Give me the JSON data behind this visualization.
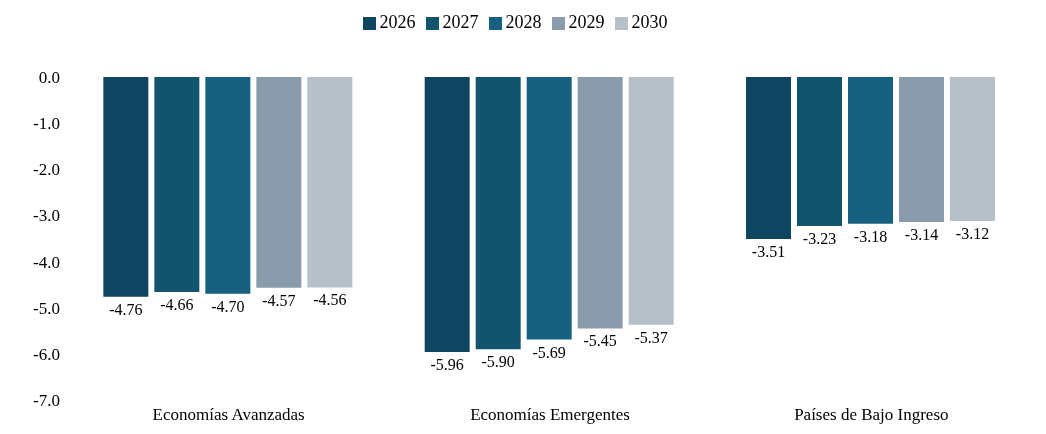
{
  "chart_data": {
    "type": "bar",
    "categories": [
      "Economías Avanzadas",
      "Economías Emergentes",
      "Países de Bajo Ingreso"
    ],
    "series": [
      {
        "name": "2026",
        "color": "#0e4560",
        "values": [
          -4.76,
          -5.96,
          -3.51
        ],
        "value_labels": [
          "-4.76",
          "-5.96",
          "-3.51"
        ]
      },
      {
        "name": "2027",
        "color": "#12546e",
        "values": [
          -4.66,
          -5.9,
          -3.23
        ],
        "value_labels": [
          "-4.66",
          "-5.90",
          "-3.23"
        ]
      },
      {
        "name": "2028",
        "color": "#17607f",
        "values": [
          -4.7,
          -5.69,
          -3.18
        ],
        "value_labels": [
          "-4.70",
          "-5.69",
          "-3.18"
        ]
      },
      {
        "name": "2029",
        "color": "#8a9bab",
        "values": [
          -4.57,
          -5.45,
          -3.14
        ],
        "value_labels": [
          "-4.57",
          "-5.45",
          "-3.14"
        ]
      },
      {
        "name": "2030",
        "color": "#b6c0c9",
        "values": [
          -4.56,
          -5.37,
          -3.12
        ],
        "value_labels": [
          "-4.56",
          "-5.37",
          "-3.12"
        ]
      }
    ],
    "ylim": [
      -7,
      0
    ],
    "yticks": [
      {
        "value": 0,
        "label": "0.0"
      },
      {
        "value": -1,
        "label": "-1.0"
      },
      {
        "value": -2,
        "label": "-2.0"
      },
      {
        "value": -3,
        "label": "-3.0"
      },
      {
        "value": -4,
        "label": "-4.0"
      },
      {
        "value": -5,
        "label": "-5.0"
      },
      {
        "value": -6,
        "label": "-6.0"
      },
      {
        "value": -7,
        "label": "-7.0"
      }
    ],
    "grid": false,
    "legend": "top"
  }
}
